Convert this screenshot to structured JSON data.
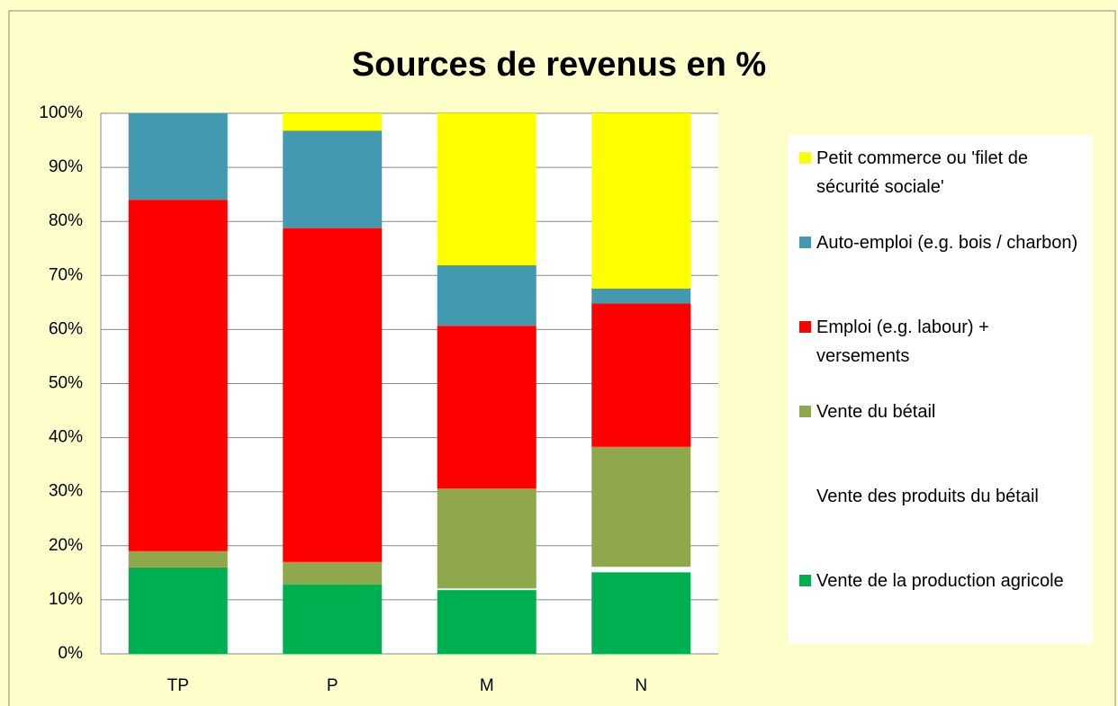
{
  "chart_data": {
    "type": "stacked_bar",
    "title": "Sources de revenus en %",
    "categories": [
      "TP",
      "P",
      "M",
      "N"
    ],
    "series": [
      {
        "name": "Vente de la production agricole",
        "color": "#00b050",
        "values": [
          16,
          12.8,
          11.8,
          15.1
        ]
      },
      {
        "name": "Vente des produits du bétail",
        "color": "#ffffff",
        "values": [
          0,
          0,
          0.3,
          1.0
        ]
      },
      {
        "name": "Vente du bétail",
        "color": "#8ea84b",
        "values": [
          3,
          4.2,
          18.5,
          22.2
        ]
      },
      {
        "name": "Emploi (e.g. labour) + versements",
        "color": "#ff0000",
        "values": [
          65,
          61.7,
          30.1,
          26.5
        ]
      },
      {
        "name": "Auto-emploi (e.g. bois / charbon)",
        "color": "#4299b0",
        "values": [
          16,
          18.1,
          11.2,
          2.8
        ]
      },
      {
        "name": "Petit commerce ou 'filet de sécurité sociale'",
        "color": "#ffff00",
        "values": [
          0,
          3.2,
          28.1,
          32.4
        ]
      }
    ],
    "ylim": [
      0,
      100
    ],
    "yticks": [
      {
        "value": 0,
        "label": "0%"
      },
      {
        "value": 10,
        "label": "10%"
      },
      {
        "value": 20,
        "label": "20%"
      },
      {
        "value": 30,
        "label": "30%"
      },
      {
        "value": 40,
        "label": "40%"
      },
      {
        "value": 50,
        "label": "50%"
      },
      {
        "value": 60,
        "label": "60%"
      },
      {
        "value": 70,
        "label": "70%"
      },
      {
        "value": 80,
        "label": "80%"
      },
      {
        "value": 90,
        "label": "90%"
      },
      {
        "value": 100,
        "label": "100%"
      }
    ],
    "grid": true,
    "legend": "right"
  }
}
